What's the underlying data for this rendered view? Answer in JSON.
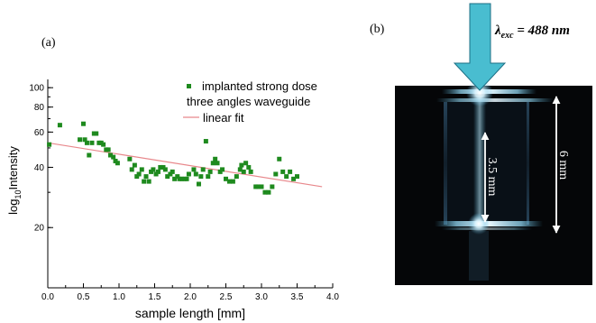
{
  "panel_a": {
    "label": "(a)",
    "chart_data": {
      "type": "scatter",
      "title": "",
      "xlabel": "sample length [mm]",
      "ylabel": "log10Intensity",
      "ylabel_parts": {
        "base": "log",
        "sub": "10",
        "rest": "Intensity"
      },
      "xlim": [
        0.0,
        4.0
      ],
      "ylim": [
        10,
        110
      ],
      "yscale": "log",
      "grid": false,
      "legend_position": "top-right",
      "x_ticks": [
        0.0,
        0.5,
        1.0,
        1.5,
        2.0,
        2.5,
        3.0,
        3.5,
        4.0
      ],
      "x_tick_labels": [
        "0.0",
        "0.5",
        "1.0",
        "1.5",
        "2.0",
        "2.5",
        "3.0",
        "3.5",
        "4.0"
      ],
      "y_ticks": [
        20,
        40,
        60,
        80,
        100
      ],
      "y_tick_labels": [
        "20",
        "40",
        "60",
        "80",
        "100"
      ],
      "series": [
        {
          "name": "implanted strong dose three angles waveguide",
          "legend_lines": [
            "implanted strong dose",
            "three angles waveguide"
          ],
          "kind": "scatter",
          "color": "#1e8a1e",
          "x": [
            0.02,
            0.17,
            0.45,
            0.5,
            0.52,
            0.55,
            0.58,
            0.62,
            0.65,
            0.68,
            0.72,
            0.75,
            0.78,
            0.82,
            0.85,
            0.88,
            0.92,
            0.95,
            0.98,
            1.15,
            1.18,
            1.22,
            1.25,
            1.28,
            1.32,
            1.35,
            1.38,
            1.42,
            1.45,
            1.48,
            1.52,
            1.55,
            1.58,
            1.62,
            1.65,
            1.68,
            1.72,
            1.75,
            1.78,
            1.82,
            1.85,
            1.88,
            1.92,
            1.95,
            1.98,
            2.05,
            2.08,
            2.12,
            2.15,
            2.18,
            2.22,
            2.25,
            2.28,
            2.32,
            2.35,
            2.38,
            2.42,
            2.45,
            2.5,
            2.55,
            2.6,
            2.65,
            2.7,
            2.72,
            2.75,
            2.78,
            2.82,
            2.85,
            2.92,
            2.95,
            3.0,
            3.05,
            3.1,
            3.15,
            3.2,
            3.25,
            3.3,
            3.35,
            3.4,
            3.45,
            3.5
          ],
          "y": [
            52,
            65,
            55,
            66,
            55,
            53,
            46,
            53,
            59,
            59,
            53,
            53,
            52,
            49,
            49,
            46,
            45,
            43,
            42,
            44,
            39,
            41,
            36,
            37,
            39,
            34,
            36,
            34,
            38,
            39,
            37,
            38,
            40,
            40,
            39,
            36,
            37,
            38,
            35,
            36,
            35,
            35,
            35,
            35,
            37,
            39,
            37,
            33,
            36,
            39,
            54,
            36,
            38,
            42,
            44,
            42,
            38,
            39,
            35,
            34,
            34,
            36,
            39,
            41,
            38,
            42,
            40,
            38,
            32,
            32,
            32,
            30,
            30,
            32,
            37,
            44,
            38,
            36,
            38,
            35,
            36
          ]
        },
        {
          "name": "linear fit",
          "kind": "line",
          "color": "#e8888c",
          "x": [
            0.0,
            3.85
          ],
          "y": [
            53,
            32
          ]
        }
      ]
    }
  },
  "panel_b": {
    "label": "(b)",
    "excitation_label": {
      "symbol": "λ",
      "sub": "exc",
      "rest": " = 488 nm"
    },
    "scale_short": "3.5 mm",
    "scale_long": "6 mm",
    "colors": {
      "arrow": "#49bdd0",
      "arrow_edge": "#1d6f85",
      "photo_bg": "#050608",
      "glow": "#bfe8f7"
    }
  }
}
